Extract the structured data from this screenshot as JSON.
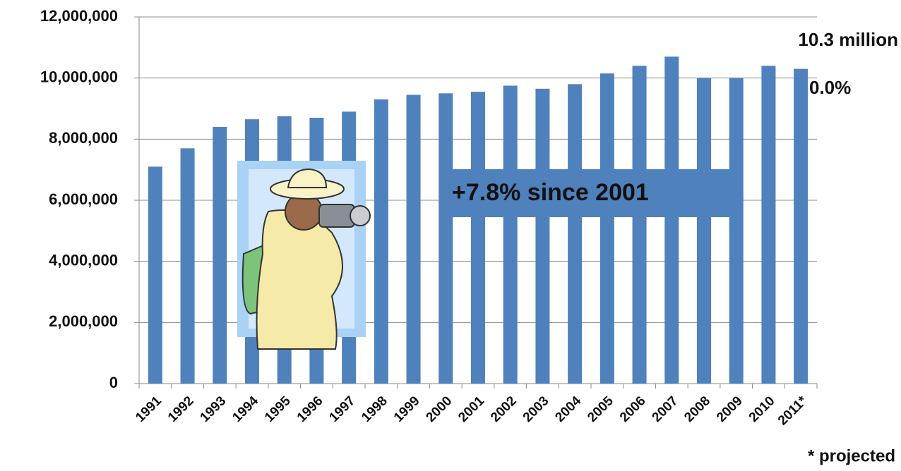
{
  "chart_data": {
    "type": "bar",
    "categories": [
      "1991",
      "1992",
      "1993",
      "1994",
      "1995",
      "1996",
      "1997",
      "1998",
      "1999",
      "2000",
      "2001",
      "2002",
      "2003",
      "2004",
      "2005",
      "2006",
      "2007",
      "2008",
      "2009",
      "2010",
      "2011*"
    ],
    "values": [
      7100000,
      7700000,
      8400000,
      8650000,
      8750000,
      8700000,
      8900000,
      9300000,
      9450000,
      9500000,
      9550000,
      9750000,
      9650000,
      9800000,
      10150000,
      10400000,
      10700000,
      10000000,
      10000000,
      10400000,
      10300000
    ],
    "color": "#4f81bd",
    "ylim": [
      0,
      12000000
    ],
    "yticks": [
      0,
      {
        "value": 2000000,
        "label": "2,000,000"
      },
      {
        "value": 4000000,
        "label": "4,000,000"
      },
      {
        "value": 6000000,
        "label": "6,000,000"
      },
      {
        "value": 8000000,
        "label": "8,000,000"
      },
      {
        "value": 10000000,
        "label": "10,000,000"
      },
      {
        "value": 12000000,
        "label": "12,000,000"
      }
    ],
    "grid": true,
    "annotations": [
      "10.3 million",
      "0.0%",
      "+7.8% since 2001",
      "* projected"
    ]
  }
}
